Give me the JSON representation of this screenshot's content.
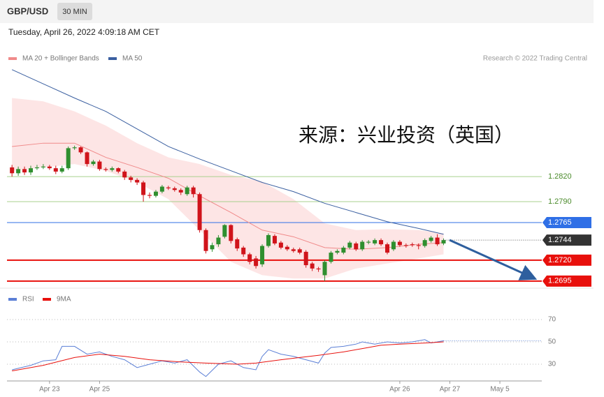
{
  "header": {
    "symbol": "GBP/USD",
    "interval": "30 MIN",
    "timestamp": "Tuesday, April 26, 2022 4:09:18 AM CET"
  },
  "watermark": "来源：兴业投资（英国）",
  "credit": "Research © 2022 Trading Central",
  "chart_data": [
    {
      "type": "candlestick",
      "open": [
        1.2831,
        1.2824,
        1.2829,
        1.2825,
        1.283,
        1.2831,
        1.2832,
        1.283,
        1.2826,
        1.283,
        1.2854,
        1.2855,
        1.2849,
        1.2835,
        1.2838,
        1.2829,
        1.2828,
        1.283,
        1.2826,
        1.2819,
        1.2816,
        1.2813,
        1.2798,
        1.2797,
        1.2802,
        1.2807,
        1.2806,
        1.2804,
        1.2799,
        1.2807,
        1.2799,
        1.2756,
        1.2733,
        1.2739,
        1.2748,
        1.2762,
        1.2745,
        1.2735,
        1.2727,
        1.2722,
        1.2715,
        1.2737,
        1.2749,
        1.2741,
        1.2736,
        1.2733,
        1.2733,
        1.273,
        1.2716,
        1.271,
        1.2702,
        1.2718,
        1.2729,
        1.2729,
        1.2735,
        1.274,
        1.2733,
        1.2741,
        1.274,
        1.2744,
        1.2739,
        1.2733,
        1.2742,
        1.2738,
        1.2739,
        1.2738,
        1.2737,
        1.2743,
        1.2747,
        1.274
      ],
      "high": [
        1.2834,
        1.2832,
        1.2832,
        1.2833,
        1.2834,
        1.2835,
        1.2834,
        1.2833,
        1.2833,
        1.2856,
        1.2857,
        1.2856,
        1.285,
        1.284,
        1.284,
        1.2831,
        1.2832,
        1.2831,
        1.2828,
        1.2821,
        1.2818,
        1.2815,
        1.2801,
        1.2804,
        1.281,
        1.2809,
        1.2808,
        1.2806,
        1.2809,
        1.2809,
        1.2801,
        1.2758,
        1.2741,
        1.275,
        1.2763,
        1.2763,
        1.2747,
        1.2737,
        1.2729,
        1.2725,
        1.2739,
        1.2752,
        1.2751,
        1.2743,
        1.2738,
        1.2735,
        1.2735,
        1.2732,
        1.2718,
        1.2712,
        1.272,
        1.2731,
        1.2733,
        1.2737,
        1.2743,
        1.2742,
        1.2744,
        1.2744,
        1.2746,
        1.2746,
        1.2741,
        1.2744,
        1.2744,
        1.274,
        1.2741,
        1.274,
        1.2746,
        1.2749,
        1.2751,
        1.2746
      ],
      "low": [
        1.282,
        1.2821,
        1.2822,
        1.2822,
        1.2828,
        1.2829,
        1.2828,
        1.2823,
        1.2824,
        1.2828,
        1.2852,
        1.2847,
        1.2832,
        1.2833,
        1.2827,
        1.2826,
        1.2826,
        1.2824,
        1.2816,
        1.2813,
        1.281,
        1.279,
        1.2794,
        1.2795,
        1.28,
        1.2804,
        1.2802,
        1.2798,
        1.2797,
        1.2795,
        1.2753,
        1.2728,
        1.273,
        1.2736,
        1.2746,
        1.274,
        1.2731,
        1.2724,
        1.2715,
        1.271,
        1.2712,
        1.2735,
        1.2738,
        1.2733,
        1.2731,
        1.2729,
        1.2727,
        1.2711,
        1.2707,
        1.2706,
        1.2695,
        1.2716,
        1.2727,
        1.2727,
        1.2733,
        1.2731,
        1.2731,
        1.2739,
        1.2738,
        1.2737,
        1.2727,
        1.2731,
        1.2736,
        1.2735,
        1.2736,
        1.2733,
        1.2735,
        1.2741,
        1.2737,
        1.2738
      ],
      "close": [
        1.2824,
        1.2829,
        1.2825,
        1.283,
        1.2831,
        1.2832,
        1.283,
        1.2826,
        1.283,
        1.2854,
        1.2855,
        1.2849,
        1.2835,
        1.2838,
        1.2829,
        1.2828,
        1.283,
        1.2826,
        1.2819,
        1.2816,
        1.2813,
        1.2798,
        1.2797,
        1.2802,
        1.2808,
        1.2806,
        1.2804,
        1.2801,
        1.2807,
        1.2799,
        1.2756,
        1.2731,
        1.2738,
        1.2747,
        1.2762,
        1.2743,
        1.2734,
        1.2727,
        1.2718,
        1.2713,
        1.2737,
        1.275,
        1.274,
        1.2735,
        1.2733,
        1.2731,
        1.2729,
        1.2714,
        1.271,
        1.2709,
        1.2718,
        1.2729,
        1.2731,
        1.2735,
        1.2741,
        1.2733,
        1.2742,
        1.2742,
        1.2744,
        1.2739,
        1.2729,
        1.2742,
        1.2738,
        1.2737,
        1.2738,
        1.2737,
        1.2744,
        1.2747,
        1.2739,
        1.2744
      ],
      "up_color": "#2f8f2f",
      "down_color": "#d0141b",
      "band_color": "#fde0e0",
      "series": [
        {
          "name": "MA 20 + Bollinger Bands",
          "color": "#f08a8a",
          "x": [
            0,
            5,
            10,
            15,
            20,
            25,
            30,
            35,
            40,
            45,
            50,
            55,
            60,
            65,
            69
          ],
          "values": [
            1.2856,
            1.286,
            1.286,
            1.2843,
            1.2831,
            1.2818,
            1.2797,
            1.2777,
            1.2756,
            1.2748,
            1.2735,
            1.2733,
            1.2735,
            1.2739,
            1.2741
          ],
          "upper": [
            1.2914,
            1.291,
            1.2898,
            1.2881,
            1.286,
            1.2843,
            1.2835,
            1.2822,
            1.2814,
            1.2793,
            1.2764,
            1.2756,
            1.2757,
            1.2756,
            1.2752
          ],
          "lower": [
            1.2827,
            1.2831,
            1.2835,
            1.2827,
            1.2813,
            1.2793,
            1.2756,
            1.2718,
            1.2702,
            1.2698,
            1.2698,
            1.271,
            1.2716,
            1.2722,
            1.2727
          ]
        },
        {
          "name": "MA 50",
          "color": "#3a5fa0",
          "x": [
            0,
            5,
            10,
            15,
            20,
            25,
            30,
            35,
            40,
            45,
            50,
            55,
            60,
            65,
            69
          ],
          "values": [
            1.2948,
            1.2931,
            1.2914,
            1.2898,
            1.2877,
            1.2856,
            1.2841,
            1.2827,
            1.2813,
            1.2802,
            1.2788,
            1.2777,
            1.2766,
            1.2758,
            1.2751
          ]
        }
      ],
      "levels": [
        {
          "value": 1.282,
          "label": "1.2820",
          "color": "#a8d08d",
          "tag": false
        },
        {
          "value": 1.279,
          "label": "1.2790",
          "color": "#a8d08d",
          "tag": false
        },
        {
          "value": 1.2765,
          "color": "#2f6fe6",
          "tag": true
        },
        {
          "value": 1.272,
          "label": "1.2720",
          "color": "#e8100c",
          "tag": true
        },
        {
          "value": 1.2695,
          "color": "#e8100c",
          "tag": true
        }
      ],
      "last_price": 1.2744,
      "xlim": [
        -0.8,
        84.7
      ],
      "ylim": [
        1.2689,
        1.2952
      ]
    },
    {
      "type": "line",
      "series": [
        {
          "name": "RSI",
          "color": "#5b7fd6",
          "x": [
            0,
            3,
            5,
            7,
            8,
            10,
            12,
            14,
            16,
            18,
            20,
            22,
            24,
            26,
            28,
            30,
            31,
            33,
            35,
            37,
            39,
            40,
            41,
            43,
            45,
            47,
            49,
            50,
            51,
            53,
            55,
            56,
            58,
            60,
            62,
            64,
            66,
            67,
            69
          ],
          "values": [
            25,
            29,
            33,
            34,
            46,
            46,
            39,
            41,
            37,
            34,
            27,
            30,
            33,
            31,
            34,
            23,
            19,
            30,
            33,
            27,
            25,
            37,
            43,
            39,
            37,
            34,
            31,
            40,
            45,
            46,
            48,
            50,
            48,
            50,
            49,
            50,
            52,
            49,
            51
          ]
        },
        {
          "name": "9MA",
          "color": "#e8100c",
          "x": [
            0,
            5,
            10,
            14,
            18,
            22,
            27,
            31,
            36,
            39,
            43,
            46,
            49,
            53,
            56,
            59,
            62,
            66,
            69
          ],
          "values": [
            24,
            29,
            36,
            39,
            37,
            34,
            32,
            31,
            30,
            31,
            34,
            36,
            38,
            41,
            44,
            47,
            48,
            49,
            50
          ]
        }
      ],
      "xlim": [
        -0.8,
        84.7
      ],
      "ylim": [
        15,
        80
      ],
      "yticks": [
        30,
        50,
        70
      ],
      "xticks": [
        {
          "value": 6,
          "label": "Apr 23"
        },
        {
          "value": 14,
          "label": "Apr 25"
        },
        {
          "value": 62,
          "label": "Apr 26"
        },
        {
          "value": 70,
          "label": "Apr 27"
        },
        {
          "value": 78,
          "label": "May 5"
        }
      ]
    }
  ]
}
